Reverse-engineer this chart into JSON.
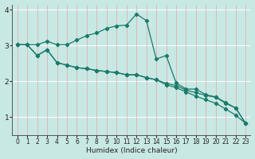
{
  "xlabel": "Humidex (Indice chaleur)",
  "background_color": "#c8e8e4",
  "grid_color_h": "#ffffff",
  "grid_color_v": "#e0a8a8",
  "line_color": "#1a7a6a",
  "xlim": [
    -0.5,
    23.5
  ],
  "ylim": [
    0.5,
    4.15
  ],
  "yticks": [
    1,
    2,
    3,
    4
  ],
  "xticks": [
    0,
    1,
    2,
    3,
    4,
    5,
    6,
    7,
    8,
    9,
    10,
    11,
    12,
    13,
    14,
    15,
    16,
    17,
    18,
    19,
    20,
    21,
    22,
    23
  ],
  "line1_x": [
    0,
    1,
    2,
    3,
    4,
    5,
    6,
    7,
    8,
    9,
    10,
    11,
    12,
    13,
    14,
    15,
    16,
    17,
    18,
    19,
    20,
    21,
    22,
    23
  ],
  "line1_y": [
    3.02,
    3.02,
    3.02,
    3.12,
    3.02,
    3.02,
    3.15,
    3.28,
    3.35,
    3.48,
    3.55,
    3.57,
    3.88,
    3.7,
    2.62,
    2.72,
    1.95,
    1.78,
    1.78,
    1.62,
    1.56,
    1.4,
    1.25,
    0.82
  ],
  "line2_x": [
    0,
    1,
    2,
    3,
    4,
    5,
    6,
    7,
    8,
    9,
    10,
    11,
    12,
    13,
    14,
    15,
    16,
    17,
    18,
    19,
    20,
    21,
    22,
    23
  ],
  "line2_y": [
    3.02,
    3.02,
    2.72,
    2.88,
    2.52,
    2.45,
    2.38,
    2.35,
    2.3,
    2.27,
    2.24,
    2.18,
    2.18,
    2.1,
    2.04,
    1.94,
    1.88,
    1.75,
    1.68,
    1.6,
    1.55,
    1.38,
    1.25,
    0.82
  ],
  "line3_x": [
    0,
    1,
    2,
    3,
    4,
    5,
    6,
    7,
    8,
    9,
    10,
    11,
    12,
    13,
    14,
    15,
    16,
    17,
    18,
    19,
    20,
    21,
    22,
    23
  ],
  "line3_y": [
    3.02,
    3.02,
    2.72,
    2.88,
    2.52,
    2.45,
    2.38,
    2.35,
    2.3,
    2.27,
    2.24,
    2.18,
    2.18,
    2.1,
    2.04,
    1.9,
    1.82,
    1.7,
    1.58,
    1.48,
    1.38,
    1.22,
    1.05,
    0.82
  ]
}
